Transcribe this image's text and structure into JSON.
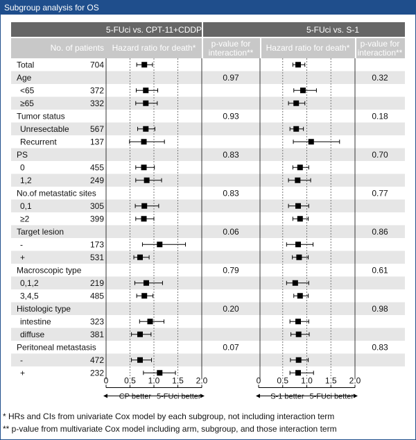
{
  "window": {
    "title": "Subgroup analysis for OS"
  },
  "header": {
    "comparisons": [
      "5-FUci vs. CPT-11+CDDP",
      "5-FUci vs. S-1"
    ],
    "col_patients": "No. of patients",
    "col_hr": "Hazard ratio for death*",
    "col_pval_line1": "p-value for",
    "col_pval_line2": "interaction**"
  },
  "chart_data": {
    "type": "forest",
    "xlim": [
      0,
      2.0
    ],
    "xticks": [
      "0",
      "0.5",
      "1.0",
      "1.5",
      "2.0"
    ],
    "reference_lines": [
      0.5,
      1.0,
      1.5
    ],
    "panels": [
      {
        "name": "5-FUci vs. CPT-11+CDDP",
        "better_left": "CP better",
        "better_right": "5-FUci better"
      },
      {
        "name": "5-FUci vs. S-1",
        "better_left": "S-1 better",
        "better_right": "5-FUci better"
      }
    ],
    "rows": [
      {
        "label": "Total",
        "indent": false,
        "n": "704",
        "p1": "",
        "p2": "",
        "est": [
          [
            0.8,
            0.64,
            0.97
          ],
          [
            0.82,
            0.71,
            0.96
          ]
        ]
      },
      {
        "label": "Age",
        "indent": false,
        "n": "",
        "p1": "0.97",
        "p2": "0.32",
        "est": null
      },
      {
        "label": "<65",
        "indent": true,
        "n": "372",
        "p1": "",
        "p2": "",
        "est": [
          [
            0.83,
            0.63,
            1.08
          ],
          [
            0.92,
            0.73,
            1.2
          ]
        ]
      },
      {
        "label": "≥65",
        "indent": true,
        "n": "332",
        "p1": "",
        "p2": "",
        "est": [
          [
            0.83,
            0.62,
            1.07
          ],
          [
            0.78,
            0.62,
            0.96
          ]
        ]
      },
      {
        "label": "Tumor status",
        "indent": false,
        "n": "",
        "p1": "0.93",
        "p2": "0.18",
        "est": null
      },
      {
        "label": "Unresectable",
        "indent": true,
        "n": "567",
        "p1": "",
        "p2": "",
        "est": [
          [
            0.83,
            0.66,
            1.02
          ],
          [
            0.78,
            0.65,
            0.93
          ]
        ]
      },
      {
        "label": "Recurrent",
        "indent": true,
        "n": "137",
        "p1": "",
        "p2": "",
        "est": [
          [
            0.79,
            0.49,
            1.22
          ],
          [
            1.09,
            0.72,
            1.68
          ]
        ]
      },
      {
        "label": "PS",
        "indent": false,
        "n": "",
        "p1": "0.83",
        "p2": "0.70",
        "est": null
      },
      {
        "label": "0",
        "indent": true,
        "n": "455",
        "p1": "",
        "p2": "",
        "est": [
          [
            0.79,
            0.62,
            1.01
          ],
          [
            0.86,
            0.71,
            1.04
          ]
        ]
      },
      {
        "label": "1,2",
        "indent": true,
        "n": "249",
        "p1": "",
        "p2": "",
        "est": [
          [
            0.85,
            0.62,
            1.16
          ],
          [
            0.81,
            0.62,
            1.08
          ]
        ]
      },
      {
        "label": "No.of metastatic sites",
        "indent": false,
        "n": "",
        "p1": "0.83",
        "p2": "0.77",
        "est": null
      },
      {
        "label": "0,1",
        "indent": true,
        "n": "305",
        "p1": "",
        "p2": "",
        "est": [
          [
            0.8,
            0.61,
            1.1
          ],
          [
            0.82,
            0.62,
            1.04
          ]
        ]
      },
      {
        "label": "≥2",
        "indent": true,
        "n": "399",
        "p1": "",
        "p2": "",
        "est": [
          [
            0.79,
            0.62,
            1.0
          ],
          [
            0.86,
            0.71,
            1.03
          ]
        ]
      },
      {
        "label": "Target lesion",
        "indent": false,
        "n": "",
        "p1": "0.06",
        "p2": "0.86",
        "est": null
      },
      {
        "label": "-",
        "indent": true,
        "n": "173",
        "p1": "",
        "p2": "",
        "est": [
          [
            1.12,
            0.76,
            1.66
          ],
          [
            0.82,
            0.58,
            1.13
          ]
        ]
      },
      {
        "label": "+",
        "indent": true,
        "n": "531",
        "p1": "",
        "p2": "",
        "est": [
          [
            0.71,
            0.58,
            0.9
          ],
          [
            0.84,
            0.7,
            1.03
          ]
        ]
      },
      {
        "label": "Macroscopic type",
        "indent": false,
        "n": "",
        "p1": "0.79",
        "p2": "0.61",
        "est": null
      },
      {
        "label": "0,1,2",
        "indent": true,
        "n": "219",
        "p1": "",
        "p2": "",
        "est": [
          [
            0.84,
            0.6,
            1.18
          ],
          [
            0.76,
            0.58,
            1.04
          ]
        ]
      },
      {
        "label": "3,4,5",
        "indent": true,
        "n": "485",
        "p1": "",
        "p2": "",
        "est": [
          [
            0.8,
            0.64,
            0.98
          ],
          [
            0.86,
            0.73,
            1.03
          ]
        ]
      },
      {
        "label": "Histologic type",
        "indent": false,
        "n": "",
        "p1": "0.20",
        "p2": "0.98",
        "est": null
      },
      {
        "label": "intestine",
        "indent": true,
        "n": "323",
        "p1": "",
        "p2": "",
        "est": [
          [
            0.92,
            0.7,
            1.21
          ],
          [
            0.82,
            0.65,
            1.04
          ]
        ]
      },
      {
        "label": "diffuse",
        "indent": true,
        "n": "381",
        "p1": "",
        "p2": "",
        "est": [
          [
            0.71,
            0.53,
            0.94
          ],
          [
            0.83,
            0.67,
            1.05
          ]
        ]
      },
      {
        "label": "Peritoneal metastasis",
        "indent": false,
        "n": "",
        "p1": "0.07",
        "p2": "0.83",
        "est": null
      },
      {
        "label": "-",
        "indent": true,
        "n": "472",
        "p1": "",
        "p2": "",
        "est": [
          [
            0.71,
            0.53,
            0.95
          ],
          [
            0.83,
            0.66,
            1.03
          ]
        ]
      },
      {
        "label": "+",
        "indent": true,
        "n": "232",
        "p1": "",
        "p2": "",
        "est": [
          [
            1.12,
            0.78,
            1.45
          ],
          [
            0.82,
            0.65,
            1.14
          ]
        ]
      }
    ]
  },
  "footnotes": [
    "* HRs and CIs from univariate Cox model by each subgroup, not including interaction term",
    "** p-value from multivariate Cox model including arm, subgroup, and those interaction term"
  ],
  "colors": {
    "title_bar": "#1f4e8c",
    "group_header": "#666666",
    "col_header": "#c8c8c8",
    "band": "#e6e6e6"
  }
}
